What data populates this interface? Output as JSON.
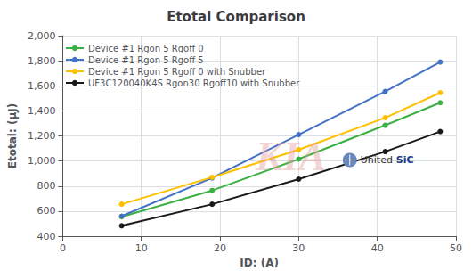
{
  "chart_data": {
    "type": "line",
    "title": "Etotal Comparison",
    "x_label": "ID: (A)",
    "y_label": "Etotal: (μJ)",
    "xlim": [
      0,
      50
    ],
    "ylim": [
      400,
      2000
    ],
    "xticks": [
      0,
      10,
      20,
      30,
      40,
      50
    ],
    "yticks": [
      400,
      600,
      800,
      1000,
      1200,
      1400,
      1600,
      1800,
      2000
    ],
    "grid": true,
    "legend": "upper left",
    "series": [
      {
        "name": "Device #1 Rgon 5 Rgoff 0",
        "color": "#3cb044",
        "marker": "circle",
        "x": [
          7.5,
          19,
          30,
          41,
          48
        ],
        "values": [
          555,
          765,
          1015,
          1285,
          1465
        ]
      },
      {
        "name": "Device #1 Rgon 5 Rgoff 5",
        "color": "#4472c4",
        "marker": "circle",
        "x": [
          7.5,
          19,
          30,
          41,
          48
        ],
        "values": [
          560,
          865,
          1210,
          1555,
          1790
        ]
      },
      {
        "name": "Device #1 Rgon 5 Rgoff 0 with Snubber",
        "color": "#ffc000",
        "marker": "circle",
        "x": [
          7.5,
          19,
          30,
          41,
          48
        ],
        "values": [
          655,
          870,
          1090,
          1345,
          1545
        ]
      },
      {
        "name": "UF3C120040K4S Rgon30 Rgoff10 with Snubber",
        "color": "#1a1a1a",
        "marker": "circle",
        "x": [
          7.5,
          19,
          30,
          41,
          48
        ],
        "values": [
          483,
          655,
          855,
          1075,
          1235
        ]
      }
    ],
    "annotations": [
      {
        "text": "KIA",
        "color": "#e8a0a0"
      },
      {
        "text": "United",
        "color": "#333333"
      },
      {
        "text": "SiC",
        "color": "#1a3a8a"
      }
    ]
  }
}
